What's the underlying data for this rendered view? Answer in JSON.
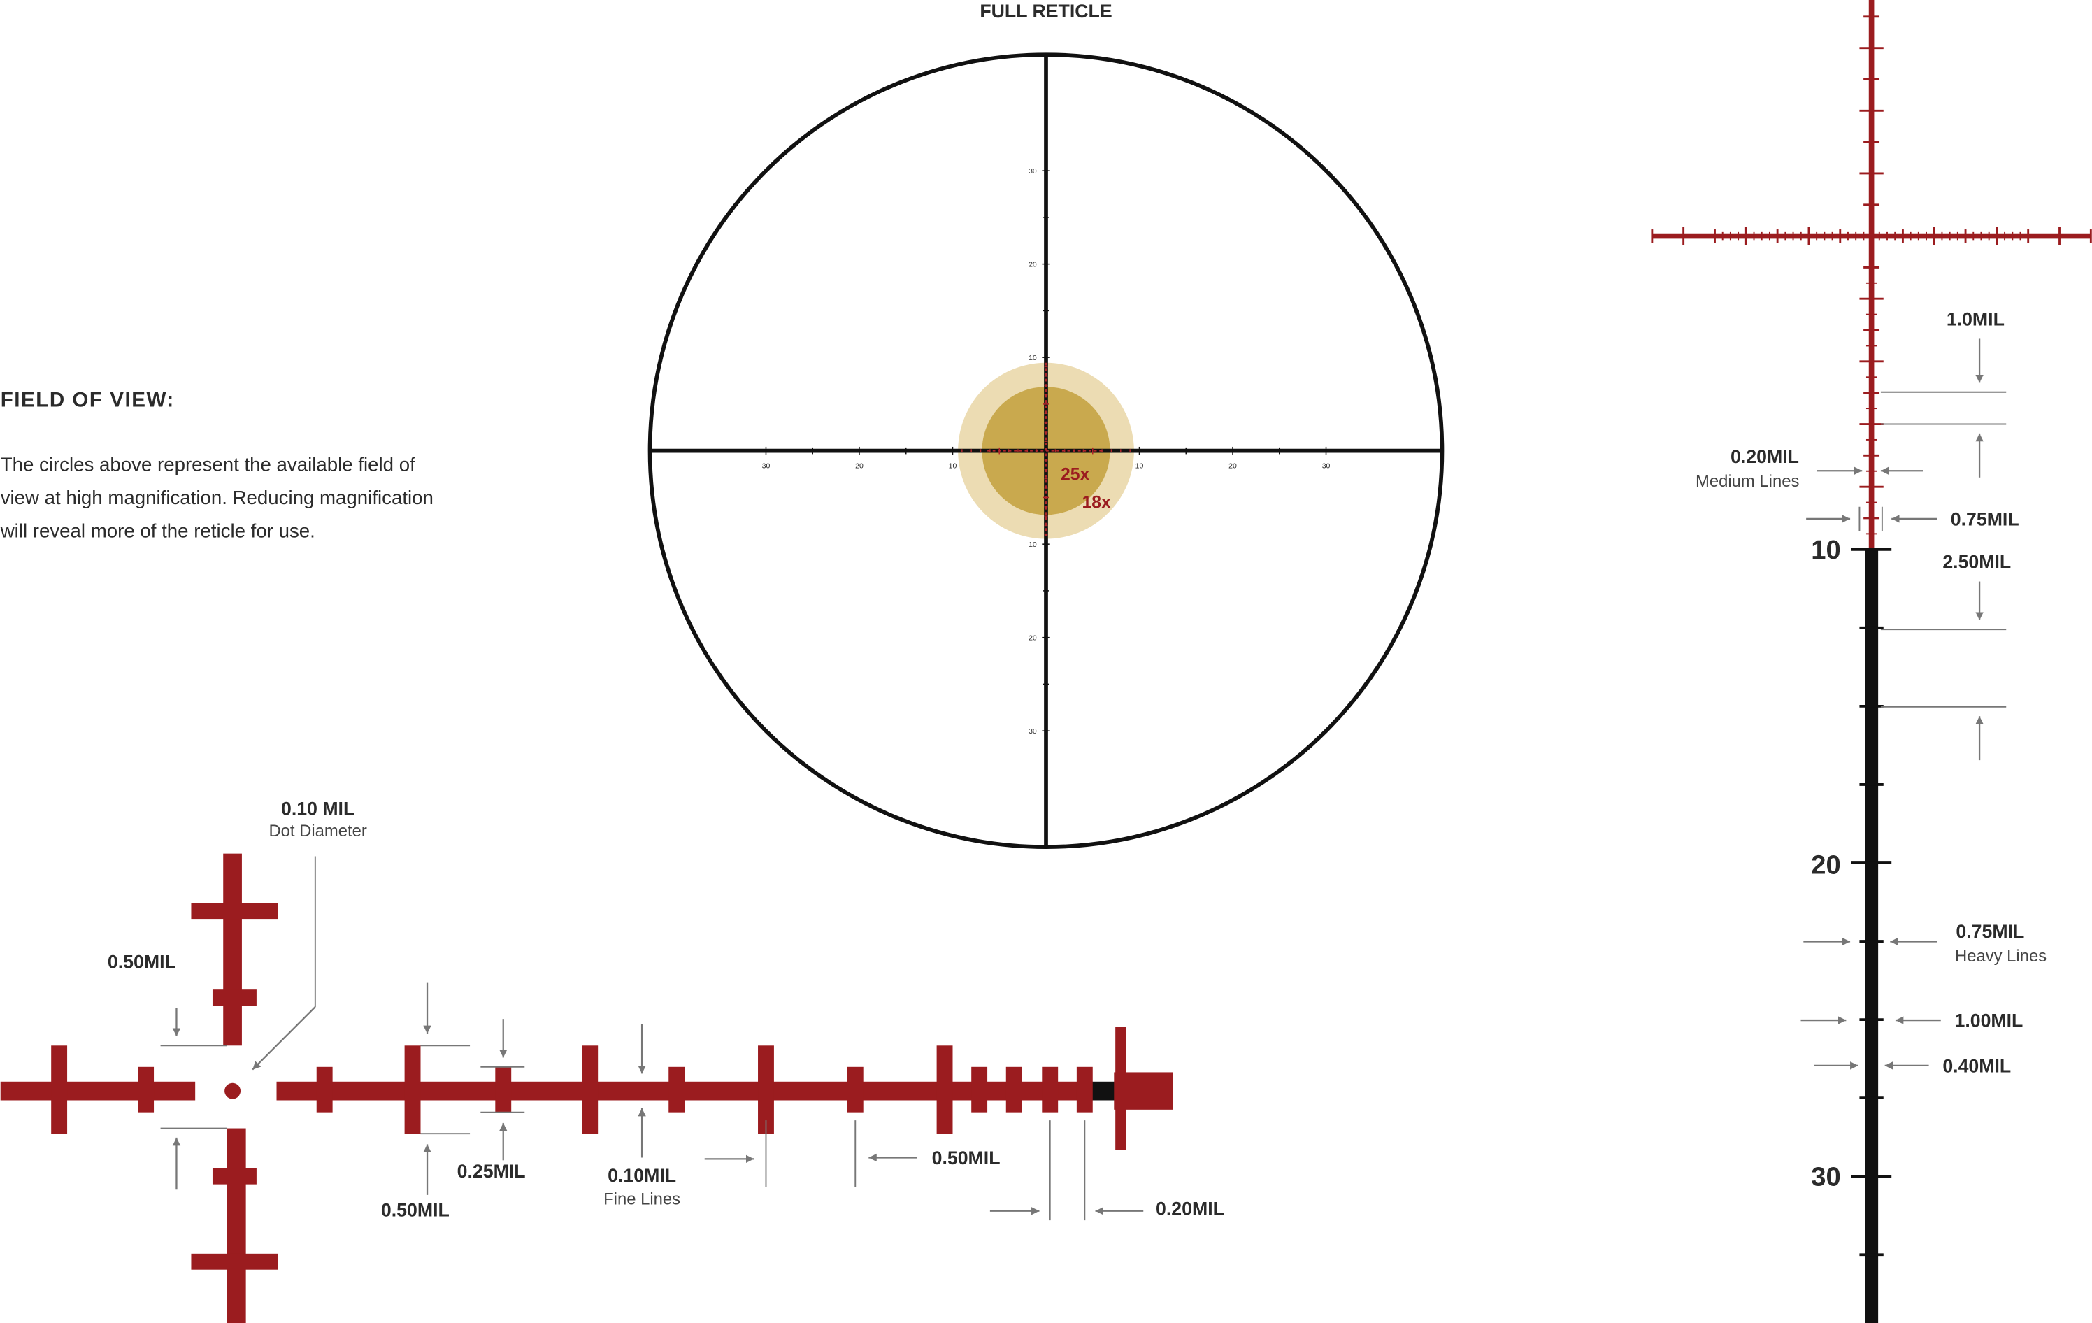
{
  "header": {
    "title": "FULL RETICLE"
  },
  "field_of_view": {
    "title": "FIELD OF VIEW:",
    "lines": [
      "The circles above represent the available field of",
      "view at high magnification. Reducing magnification",
      "will reveal more of the reticle for use."
    ]
  },
  "reticle": {
    "magnifications": [
      "25x",
      "18x"
    ],
    "h_labels": [
      "30",
      "20",
      "10",
      "10",
      "20",
      "30"
    ],
    "v_labels": [
      "30",
      "20",
      "10",
      "10",
      "20",
      "30"
    ]
  },
  "ladder": {
    "labels": [
      "10",
      "20",
      "30"
    ]
  },
  "callouts": [
    {
      "label": "0.10 MIL",
      "sublabel": "Dot Diameter"
    },
    {
      "label": "0.50MIL"
    },
    {
      "label": "0.50MIL"
    },
    {
      "label": "0.25MIL"
    },
    {
      "label": "0.10MIL",
      "sublabel": "Fine Lines"
    },
    {
      "label": "0.50MIL"
    },
    {
      "label": "0.20MIL"
    },
    {
      "label": "1.0MIL"
    },
    {
      "label": "0.20MIL",
      "sublabel": "Medium Lines"
    },
    {
      "label": "0.75MIL"
    },
    {
      "label": "2.50MIL"
    },
    {
      "label": "0.75MIL",
      "sublabel": "Heavy Lines"
    },
    {
      "label": "1.00MIL"
    },
    {
      "label": "0.40MIL"
    }
  ]
}
